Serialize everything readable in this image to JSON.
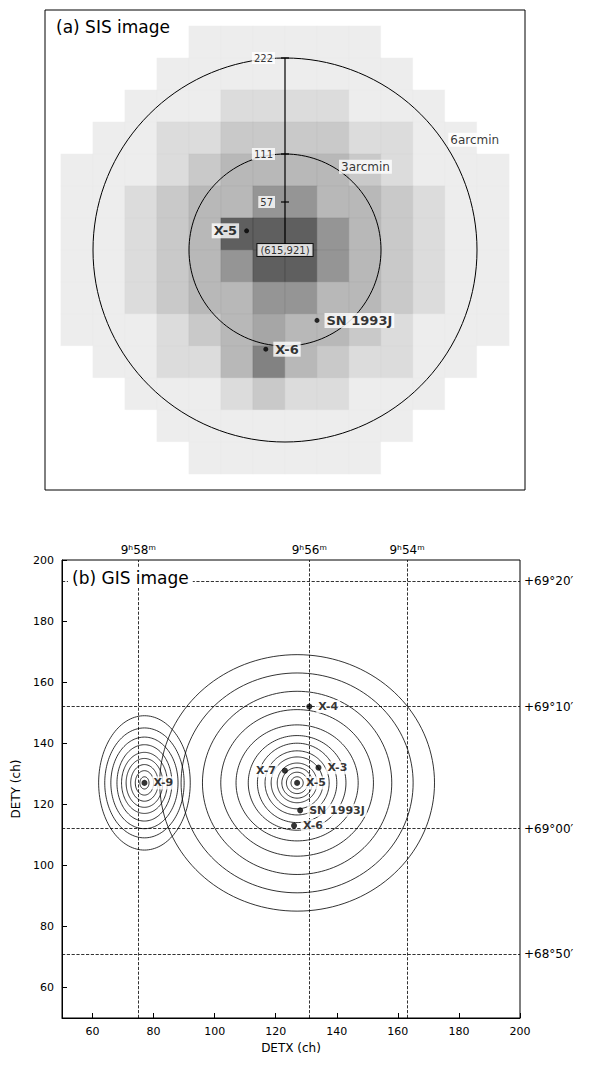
{
  "chart_data": [
    {
      "type": "heatmap",
      "title": "(a) SIS image",
      "xlim": [
        -7.5,
        7.5
      ],
      "ylim": [
        -7.5,
        7.5
      ],
      "tick_labels": false,
      "cells": {
        "x": [
          -6.5,
          -5.5,
          -4.5,
          -3.5,
          -2.5,
          -1.5,
          -0.5,
          0.5,
          1.5,
          2.5,
          3.5,
          4.5,
          5.5,
          6.5
        ],
        "y": [
          6.5,
          5.5,
          4.5,
          3.5,
          2.5,
          1.5,
          0.5,
          -0.5,
          -1.5,
          -2.5,
          -3.5,
          -4.5,
          -5.5,
          -6.5
        ],
        "counts": [
          [
            0,
            0,
            0,
            0,
            1,
            1,
            1,
            1,
            1,
            1,
            0,
            0,
            0,
            0
          ],
          [
            0,
            0,
            0,
            1,
            1,
            1,
            1,
            1,
            1,
            1,
            1,
            0,
            0,
            0
          ],
          [
            0,
            0,
            1,
            1,
            1,
            2,
            2,
            2,
            2,
            1,
            1,
            1,
            0,
            0
          ],
          [
            0,
            1,
            1,
            2,
            2,
            3,
            3,
            3,
            3,
            2,
            2,
            1,
            1,
            0
          ],
          [
            1,
            1,
            1,
            2,
            3,
            4,
            4,
            4,
            4,
            3,
            2,
            1,
            1,
            1
          ],
          [
            1,
            1,
            2,
            3,
            4,
            4,
            6,
            6,
            4,
            4,
            3,
            2,
            1,
            1
          ],
          [
            1,
            1,
            2,
            3,
            4,
            9,
            9,
            9,
            6,
            4,
            3,
            2,
            1,
            1
          ],
          [
            1,
            1,
            2,
            3,
            4,
            6,
            9,
            9,
            6,
            4,
            3,
            2,
            1,
            1
          ],
          [
            1,
            1,
            2,
            3,
            4,
            4,
            6,
            6,
            4,
            4,
            3,
            2,
            1,
            1
          ],
          [
            1,
            1,
            1,
            2,
            3,
            4,
            5,
            4,
            4,
            3,
            2,
            1,
            1,
            1
          ],
          [
            0,
            1,
            1,
            2,
            2,
            4,
            7,
            4,
            3,
            2,
            2,
            1,
            1,
            0
          ],
          [
            0,
            0,
            1,
            1,
            1,
            2,
            3,
            2,
            2,
            1,
            1,
            1,
            0,
            0
          ],
          [
            0,
            0,
            0,
            1,
            1,
            1,
            1,
            1,
            1,
            1,
            1,
            0,
            0,
            0
          ],
          [
            0,
            0,
            0,
            0,
            1,
            1,
            1,
            1,
            1,
            1,
            0,
            0,
            0,
            0
          ]
        ]
      },
      "circles": [
        {
          "radius": 3,
          "label": "3arcmin"
        },
        {
          "radius": 6,
          "label": "6arcmin"
        }
      ],
      "scale": [
        {
          "r": 6,
          "pixels": 222
        },
        {
          "r": 3,
          "pixels": 111
        },
        {
          "r": 1.5,
          "pixels": 57
        }
      ],
      "center_label": "(615,921)",
      "sources": [
        {
          "name": "X-5",
          "x": -1.2,
          "y": 0.6
        },
        {
          "name": "SN 1993J",
          "x": 1.0,
          "y": -2.2
        },
        {
          "name": "X-6",
          "x": -0.6,
          "y": -3.1
        }
      ]
    },
    {
      "type": "contour",
      "title": "(b) GIS image",
      "x_label": "DETX (ch)",
      "y_label": "DETY (ch)",
      "xlim": [
        50,
        200
      ],
      "ylim": [
        50,
        200
      ],
      "xticks": [
        60,
        80,
        100,
        120,
        140,
        160,
        180,
        200
      ],
      "yticks": [
        60,
        80,
        100,
        120,
        140,
        160,
        180,
        200
      ],
      "color": "#000000",
      "contours": [
        {
          "center": [
            127,
            127
          ],
          "radii": [
            [
              2,
              2
            ],
            [
              3.5,
              3.5
            ],
            [
              5,
              5
            ],
            [
              6.5,
              6.5
            ],
            [
              8.5,
              8.5
            ],
            [
              10.5,
              10.5
            ],
            [
              13,
              13
            ],
            [
              16,
              15.5
            ],
            [
              20,
              19
            ],
            [
              25,
              24
            ],
            [
              31,
              30
            ],
            [
              38,
              36
            ],
            [
              45,
              42
            ]
          ]
        },
        {
          "center": [
            77,
            127
          ],
          "radii": [
            [
              1.5,
              2
            ],
            [
              3,
              4
            ],
            [
              4.5,
              6
            ],
            [
              6,
              8
            ],
            [
              7.5,
              10
            ],
            [
              9,
              12.5
            ],
            [
              11,
              15
            ],
            [
              13,
              18
            ],
            [
              15,
              22
            ]
          ]
        }
      ],
      "sources": [
        {
          "name": "X-9",
          "x": 77,
          "y": 127
        },
        {
          "name": "X-7",
          "x": 123,
          "y": 131
        },
        {
          "name": "X-5",
          "x": 127,
          "y": 127
        },
        {
          "name": "X-3",
          "x": 134,
          "y": 132
        },
        {
          "name": "X-4",
          "x": 131,
          "y": 152
        },
        {
          "name": "SN 1993J",
          "x": 128,
          "y": 118
        },
        {
          "name": "X-6",
          "x": 126,
          "y": 113
        }
      ],
      "ra_lines": [
        {
          "x": 75,
          "label": "9ʰ58ᵐ"
        },
        {
          "x": 131,
          "label": "9ʰ56ᵐ"
        },
        {
          "x": 163,
          "label": "9ʰ54ᵐ"
        }
      ],
      "dec_lines": [
        {
          "y": 193,
          "label": "+69°20′"
        },
        {
          "y": 152,
          "label": "+69°10′"
        },
        {
          "y": 112,
          "label": "+69°00′"
        },
        {
          "y": 71,
          "label": "+68°50′"
        }
      ]
    }
  ]
}
